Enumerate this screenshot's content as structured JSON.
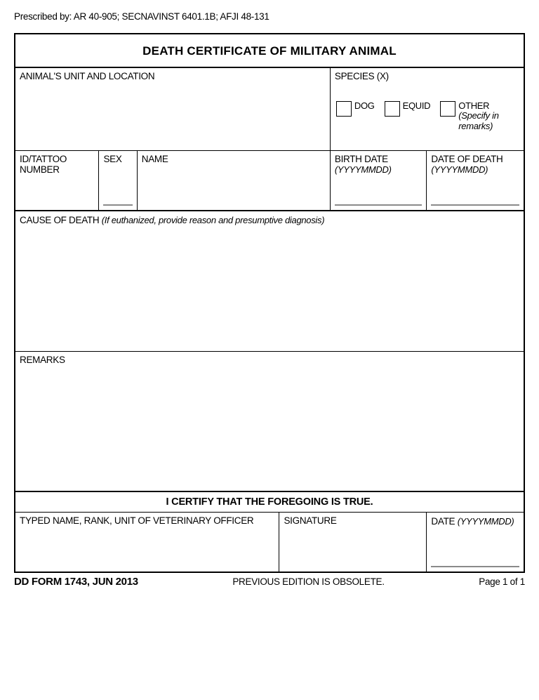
{
  "prescribed_by": "Prescribed by: AR 40-905; SECNAVINST 6401.1B; AFJI 48-131",
  "title": "DEATH CERTIFICATE OF MILITARY ANIMAL",
  "row1": {
    "unit_location_label": "ANIMAL'S UNIT AND LOCATION",
    "species_label": "SPECIES (X)",
    "opts": {
      "dog": "DOG",
      "equid": "EQUID",
      "other": "OTHER",
      "other_hint": "(Specify in remarks)"
    }
  },
  "row2": {
    "id_label": "ID/TATTOO NUMBER",
    "sex_label": "SEX",
    "name_label": "NAME",
    "birth_label": "BIRTH DATE",
    "birth_hint": "(YYYYMMDD)",
    "death_label": "DATE OF DEATH",
    "death_hint": "(YYYYMMDD)"
  },
  "row3": {
    "label": "CAUSE OF DEATH ",
    "hint": "(If euthanized, provide reason and presumptive diagnosis)"
  },
  "row4": {
    "label": "REMARKS"
  },
  "row5": {
    "text": "I CERTIFY THAT THE FOREGOING IS TRUE."
  },
  "row6": {
    "typed_label": "TYPED NAME, RANK, UNIT OF VETERINARY OFFICER",
    "sig_label": "SIGNATURE",
    "date_label": "DATE ",
    "date_hint": "(YYYYMMDD)"
  },
  "footer": {
    "form_id": "DD FORM 1743, JUN 2013",
    "obsolete": "PREVIOUS EDITION IS OBSOLETE.",
    "page": "Page 1 of 1"
  }
}
